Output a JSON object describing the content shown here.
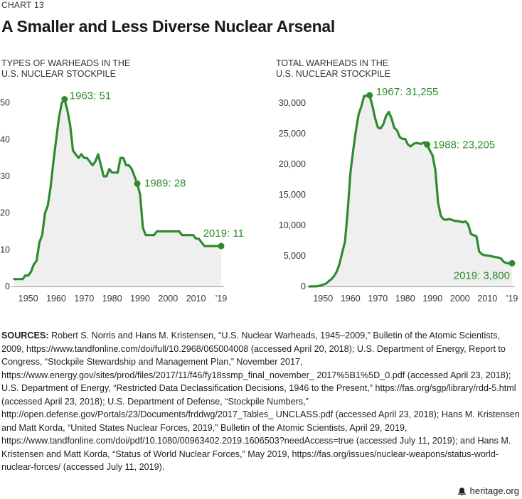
{
  "header": {
    "chart_number": "CHART 13",
    "title": "A Smaller and Less Diverse Nuclear Arsenal"
  },
  "panels": {
    "left_title_line1": "TYPES OF WARHEADS IN THE",
    "left_title_line2": "U.S. NUCLEAR STOCKPILE",
    "right_title_line1": "TOTAL WARHEADS IN THE",
    "right_title_line2": "U.S. NUCLEAR STOCKPILE"
  },
  "sources": {
    "label": "SOURCES:",
    "text": "Robert S. Norris and Hans M. Kristensen, “U.S. Nuclear Warheads, 1945–2009,” Bulletin of the Atomic Scientists, 2009, https://www.tandfonline.com/doi/full/10.2968/065004008 (accessed April 20, 2018); U.S. Department of Energy, Report to Congress, “Stockpile Stewardship and Management Plan,” November 2017, https://www.energy.gov/sites/prod/files/2017/11/f46/fy18ssmp_final_november_ 2017%5B1%5D_0.pdf (accessed April 23, 2018); U.S. Department of Energy, “Restricted Data Declassification Decisions, 1946 to the Present,” https://fas.org/sgp/library/rdd-5.html (accessed April 23, 2018); U.S. Department of Defense, “Stockpile Numbers,” http://open.defense.gov/Portals/23/Documents/frddwg/2017_Tables_ UNCLASS.pdf (accessed April 23, 2018); Hans M. Kristensen and Matt Korda, “United States Nuclear Forces, 2019,” Bulletin of the Atomic Scientists, April 29, 2019, https://www.tandfonline.com/doi/pdf/10.1080/00963402.2019.1606503?needAccess=true (accessed July 11, 2019); and Hans M. Kristensen and Matt Korda, “Status of World Nuclear Forces,” May 2019, https://fas.org/issues/nuclear-weapons/status-world-nuclear-forces/ (accessed July 11, 2019)."
  },
  "footer": {
    "brand": "heritage.org",
    "icon": "bell-icon"
  },
  "colors": {
    "line": "#2e8b2e",
    "fill": "#efefef",
    "axis": "#999999",
    "annotation": "#2e8b2e"
  },
  "chart_data": [
    {
      "type": "area",
      "title": "TYPES OF WARHEADS IN THE U.S. NUCLEAR STOCKPILE",
      "x_ticks": [
        "1950",
        "1960",
        "1970",
        "1980",
        "1990",
        "2000",
        "2010",
        "’19"
      ],
      "x_tick_values": [
        1950,
        1960,
        1970,
        1980,
        1990,
        2000,
        2010,
        2019
      ],
      "y_ticks": [
        "0",
        "10",
        "20",
        "30",
        "40",
        "50"
      ],
      "y_tick_values": [
        0,
        10,
        20,
        30,
        40,
        50
      ],
      "xlim": [
        1945,
        2019
      ],
      "ylim": [
        0,
        51
      ],
      "grid": false,
      "x": [
        1945,
        1946,
        1947,
        1948,
        1949,
        1950,
        1951,
        1952,
        1953,
        1954,
        1955,
        1956,
        1957,
        1958,
        1959,
        1960,
        1961,
        1962,
        1963,
        1964,
        1965,
        1966,
        1967,
        1968,
        1969,
        1970,
        1971,
        1972,
        1973,
        1974,
        1975,
        1976,
        1977,
        1978,
        1979,
        1980,
        1981,
        1982,
        1983,
        1984,
        1985,
        1986,
        1987,
        1988,
        1989,
        1990,
        1991,
        1992,
        1993,
        1994,
        1995,
        1996,
        1997,
        1998,
        1999,
        2000,
        2001,
        2002,
        2003,
        2004,
        2005,
        2006,
        2007,
        2008,
        2009,
        2010,
        2011,
        2012,
        2013,
        2014,
        2015,
        2016,
        2017,
        2018,
        2019
      ],
      "y": [
        2,
        2,
        2,
        2,
        3,
        3,
        4,
        6,
        7,
        12,
        14,
        20,
        22,
        27,
        34,
        40,
        46,
        50,
        51,
        48,
        44,
        37,
        36,
        35,
        36,
        35,
        35,
        34,
        33,
        34,
        36,
        33,
        30,
        30,
        32,
        31,
        31,
        31,
        35,
        35,
        33,
        33,
        32,
        30,
        28,
        25,
        16,
        14,
        14,
        14,
        14,
        15,
        15,
        15,
        15,
        15,
        15,
        15,
        15,
        15,
        14,
        14,
        14,
        14,
        14,
        13,
        13,
        12,
        11,
        11,
        11,
        11,
        11,
        11,
        11
      ],
      "annotations": [
        {
          "x": 1963,
          "y": 51,
          "text": "1963: 51"
        },
        {
          "x": 1989,
          "y": 28,
          "text": "1989: 28"
        },
        {
          "x": 2019,
          "y": 11,
          "text": "2019: 11"
        }
      ]
    },
    {
      "type": "area",
      "title": "TOTAL WARHEADS IN THE U.S. NUCLEAR STOCKPILE",
      "x_ticks": [
        "1950",
        "1960",
        "1970",
        "1980",
        "1990",
        "2000",
        "2010",
        "’19"
      ],
      "x_tick_values": [
        1950,
        1960,
        1970,
        1980,
        1990,
        2000,
        2010,
        2019
      ],
      "y_ticks": [
        "0",
        "5,000",
        "10,000",
        "15,000",
        "20,000",
        "25,000",
        "30,000"
      ],
      "y_tick_values": [
        0,
        5000,
        10000,
        15000,
        20000,
        25000,
        30000
      ],
      "xlim": [
        1945,
        2019
      ],
      "ylim": [
        0,
        31255
      ],
      "grid": false,
      "x": [
        1945,
        1946,
        1947,
        1948,
        1949,
        1950,
        1951,
        1952,
        1953,
        1954,
        1955,
        1956,
        1957,
        1958,
        1959,
        1960,
        1961,
        1962,
        1963,
        1964,
        1965,
        1966,
        1967,
        1968,
        1969,
        1970,
        1971,
        1972,
        1973,
        1974,
        1975,
        1976,
        1977,
        1978,
        1979,
        1980,
        1981,
        1982,
        1983,
        1984,
        1985,
        1986,
        1987,
        1988,
        1989,
        1990,
        1991,
        1992,
        1993,
        1994,
        1995,
        1996,
        1997,
        1998,
        1999,
        2000,
        2001,
        2002,
        2003,
        2004,
        2005,
        2006,
        2007,
        2008,
        2009,
        2010,
        2011,
        2012,
        2013,
        2014,
        2015,
        2016,
        2017,
        2018,
        2019
      ],
      "y": [
        2,
        9,
        13,
        50,
        170,
        299,
        438,
        841,
        1169,
        1703,
        2422,
        3692,
        5543,
        7345,
        12298,
        18638,
        22229,
        25540,
        28133,
        29463,
        31139,
        31175,
        31255,
        29561,
        27552,
        26008,
        25830,
        26516,
        27835,
        28537,
        27519,
        25914,
        25542,
        24418,
        24138,
        24104,
        23208,
        22886,
        23305,
        23459,
        23368,
        23317,
        23575,
        23205,
        22217,
        21392,
        19008,
        13708,
        11511,
        10979,
        10904,
        11011,
        10903,
        10732,
        10685,
        10615,
        10491,
        10640,
        10131,
        8570,
        8360,
        8214,
        5709,
        5273,
        5113,
        5066,
        4980,
        4881,
        4804,
        4717,
        4571,
        4018,
        3822,
        3785,
        3800
      ],
      "annotations": [
        {
          "x": 1967,
          "y": 31255,
          "text": "1967: 31,255"
        },
        {
          "x": 1988,
          "y": 23205,
          "text": "1988: 23,205"
        },
        {
          "x": 2019,
          "y": 3800,
          "text": "2019: 3,800"
        }
      ]
    }
  ]
}
